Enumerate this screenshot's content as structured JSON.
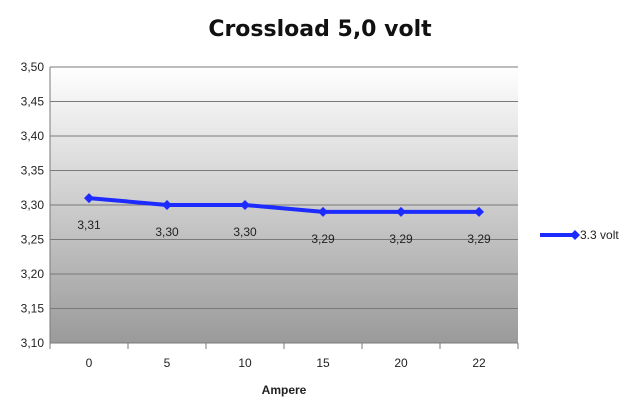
{
  "chart_data": {
    "type": "line",
    "title": "Crossload 5,0 volt",
    "xlabel": "Ampere",
    "ylabel": "",
    "categories": [
      "0",
      "5",
      "10",
      "15",
      "20",
      "22"
    ],
    "series": [
      {
        "name": "3.3 volt",
        "values": [
          3.31,
          3.3,
          3.3,
          3.29,
          3.29,
          3.29
        ],
        "labels": [
          "3,31",
          "3,30",
          "3,30",
          "3,29",
          "3,29",
          "3,29"
        ],
        "color": "#1e2bff"
      }
    ],
    "ylim": [
      3.1,
      3.5
    ],
    "yticks": [
      "3,10",
      "3,15",
      "3,20",
      "3,25",
      "3,30",
      "3,35",
      "3,40",
      "3,45",
      "3,50"
    ],
    "grid": true,
    "legend": "right",
    "plot_background": [
      "#ffffff",
      "#9a9a9a"
    ]
  }
}
